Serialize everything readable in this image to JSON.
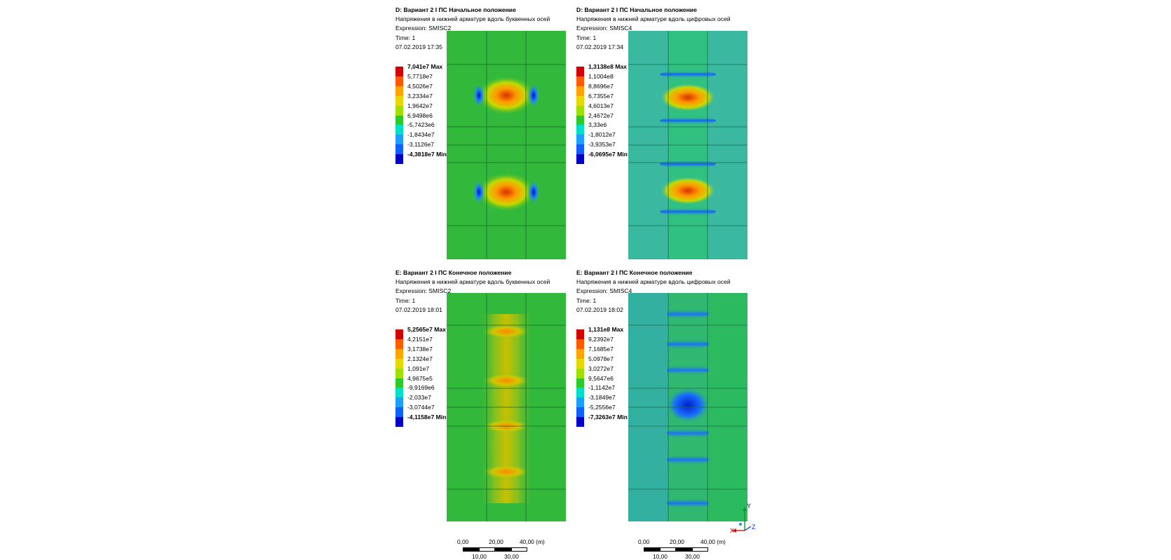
{
  "panels": [
    {
      "title": "D: Вариант 2 I ПС Начальное положение",
      "subtitle": "Напряжения в нижней арматуре вдоль буквенных осей",
      "expression": "Expression: SMISC2",
      "time": "Time: 1",
      "date": "07.02.2019 17:35",
      "legend": {
        "max": "7,041e7 Max",
        "min": "-4,3818e7 Min",
        "levels": [
          "5,7718e7",
          "4,5026e7",
          "3,2334e7",
          "1,9642e7",
          "6,9498e6",
          "-5,7423e6",
          "-1,8434e7",
          "-3,1126e7"
        ]
      }
    },
    {
      "title": "D: Вариант 2 I ПС Начальное положение",
      "subtitle": "Напряжения в нижней арматуре вдоль цифровых осей",
      "expression": "Expression: SMISC4",
      "time": "Time: 1",
      "date": "07.02.2019 17:34",
      "legend": {
        "max": "1,3138e8 Max",
        "min": "-6,0695e7 Min",
        "levels": [
          "1,1004e8",
          "8,8696e7",
          "6,7355e7",
          "4,6013e7",
          "2,4672e7",
          "3,33e6",
          "-1,8012e7",
          "-3,9353e7"
        ]
      }
    },
    {
      "title": "E: Вариант 2 I ПС Конечное положение",
      "subtitle": "Напряжения в нижней арматуре вдоль буквенных осей",
      "expression": "Expression: SMISC2",
      "time": "Time: 1",
      "date": "07.02.2019 18:01",
      "legend": {
        "max": "5,2565e7 Max",
        "min": "-4,1158e7 Min",
        "levels": [
          "4,2151e7",
          "3,1738e7",
          "2,1324e7",
          "1,091e7",
          "4,9675e5",
          "-9,9169e6",
          "-2,033e7",
          "-3,0744e7"
        ]
      }
    },
    {
      "title": "E: Вариант 2 I ПС Конечное положение",
      "subtitle": "Напряжения в нижней арматуре вдоль цифровых осей",
      "expression": "Expression: SMISC4",
      "time": "Time: 1",
      "date": "07.02.2019 18:02",
      "legend": {
        "max": "1,131e8 Max",
        "min": "-7,3263e7 Min",
        "levels": [
          "9,2392e7",
          "7,1685e7",
          "5,0978e7",
          "3,0272e7",
          "9,5647e6",
          "-1,1142e7",
          "-3,1849e7",
          "-5,2556e7"
        ]
      }
    }
  ],
  "legend_colors": [
    "#d40000",
    "#ff5a00",
    "#ffa500",
    "#e6d800",
    "#9fe000",
    "#2ccb2c",
    "#00e0c8",
    "#1aa0ff",
    "#1060ff",
    "#0000c8"
  ],
  "scalebars": [
    {
      "top_ticks": [
        "0,00",
        "20,00",
        "40,00 (m)"
      ],
      "bottom_ticks": [
        "10,00",
        "30,00"
      ]
    },
    {
      "top_ticks": [
        "0,00",
        "20,00",
        "40,00 (m)"
      ],
      "bottom_ticks": [
        "10,00",
        "30,00"
      ]
    }
  ],
  "triad": {
    "y": "Y",
    "x": "X",
    "z": "Z"
  }
}
